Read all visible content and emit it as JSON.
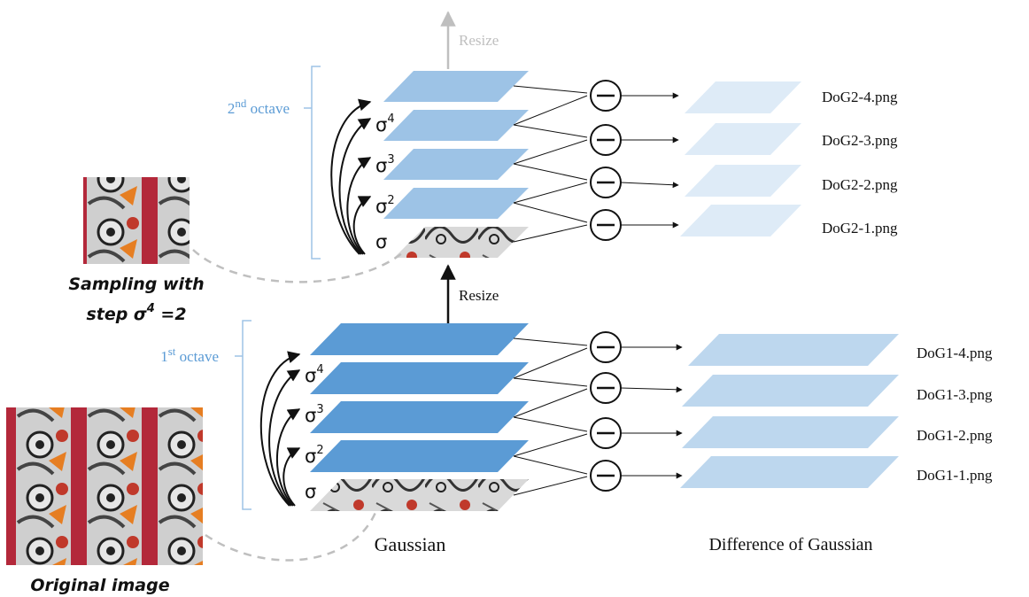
{
  "colors": {
    "octave1_gaussian": "#5b9bd5",
    "octave2_gaussian": "#9dc3e6",
    "octave1_dog": "#bdd7ee",
    "octave2_dog": "#deebf7",
    "octave_label": "#5b9bd5",
    "resize_faded": "#bfbfbf",
    "bracket": "#9dc3e6",
    "dashed": "#bfbfbf"
  },
  "labels": {
    "gaussian": "Gaussian",
    "dog": "Difference of Gaussian",
    "resize_top": "Resize",
    "resize_mid": "Resize",
    "original_image": "Original image",
    "sampling_line1": "Sampling with",
    "sampling_line2_prefix": "step σ",
    "sampling_line2_sup": "4",
    "sampling_line2_suffix": " =2"
  },
  "octaves": [
    {
      "label_base": "1",
      "label_sup": "st",
      "label_rest": " octave",
      "sigmas": [
        {
          "base": "σ",
          "sup": ""
        },
        {
          "base": "σ",
          "sup": "2"
        },
        {
          "base": "σ",
          "sup": "3"
        },
        {
          "base": "σ",
          "sup": "4"
        }
      ],
      "dog_outputs": [
        "DoG1-4.png",
        "DoG1-3.png",
        "DoG1-2.png",
        "DoG1-1.png"
      ]
    },
    {
      "label_base": "2",
      "label_sup": "nd",
      "label_rest": " octave",
      "sigmas": [
        {
          "base": "σ",
          "sup": ""
        },
        {
          "base": "σ",
          "sup": "2"
        },
        {
          "base": "σ",
          "sup": "3"
        },
        {
          "base": "σ",
          "sup": "4"
        }
      ],
      "dog_outputs": [
        "DoG2-4.png",
        "DoG2-3.png",
        "DoG2-2.png",
        "DoG2-1.png"
      ]
    }
  ],
  "icons": {
    "subtract": "minus-circle-icon",
    "arrow": "arrow-right-icon"
  }
}
